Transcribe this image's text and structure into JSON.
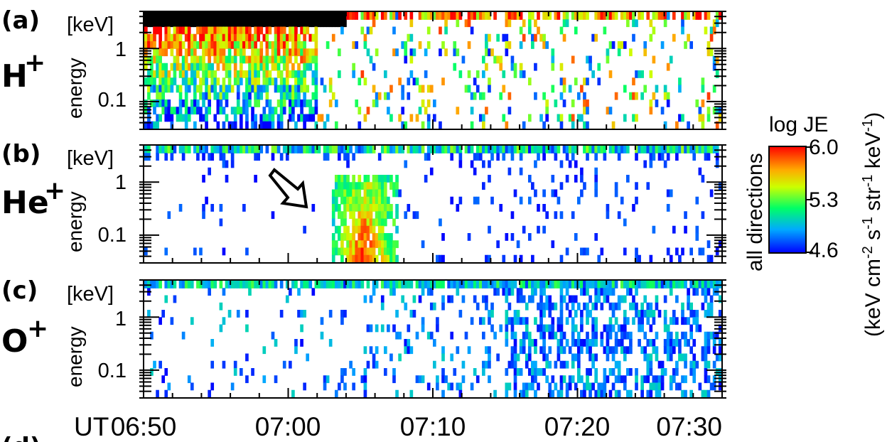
{
  "chart_data": [
    {
      "type": "heatmap",
      "panel_letter": "(a)",
      "species": "H",
      "species_charge": "+",
      "ylabel": "energy",
      "yunit": "[keV]",
      "yscale": "log",
      "ylim": [
        0.03,
        5
      ],
      "yticks": [
        {
          "value": 1,
          "label": "1"
        },
        {
          "value": 0.1,
          "label": "0.1"
        }
      ],
      "features": {
        "saturated_low_energy_until_min": 14,
        "dense_hot_plasma_until_min": 12,
        "sparse_noise_after_min": 12
      }
    },
    {
      "type": "heatmap",
      "panel_letter": "(b)",
      "species": "He",
      "species_charge": "+",
      "ylabel": "energy",
      "yunit": "[keV]",
      "yscale": "log",
      "ylim": [
        0.03,
        5
      ],
      "yticks": [
        {
          "value": 1,
          "label": "1"
        },
        {
          "value": 0.1,
          "label": "0.1"
        }
      ],
      "features": {
        "enhancement_start_min": 13,
        "enhancement_end_min": 17.5,
        "enhancement_energy_range_keV": [
          0.03,
          1.2
        ]
      },
      "annotation": {
        "type": "arrow",
        "points_to": {
          "time_min": 12.8,
          "energy_keV": 0.85
        }
      }
    },
    {
      "type": "heatmap",
      "panel_letter": "(c)",
      "species": "O",
      "species_charge": "+",
      "ylabel": "energy",
      "yunit": "[keV]",
      "yscale": "log",
      "ylim": [
        0.03,
        5
      ],
      "yticks": [
        {
          "value": 1,
          "label": "1"
        },
        {
          "value": 0.1,
          "label": "0.1"
        }
      ],
      "features": {
        "increasing_activity_after_min": 25
      }
    }
  ],
  "xaxis": {
    "label": "UT",
    "range_min": [
      0,
      40
    ],
    "ticks": [
      {
        "value": 0,
        "label": "06:50"
      },
      {
        "value": 10,
        "label": "07:00"
      },
      {
        "value": 20,
        "label": "07:10"
      },
      {
        "value": 30,
        "label": "07:20"
      },
      {
        "value": 40,
        "label": "07:30"
      }
    ]
  },
  "colorbar": {
    "title": "log JE",
    "side_label": "all directions",
    "unit_parts": [
      "(keV cm",
      "-2",
      " s",
      "-1",
      " str",
      "-1",
      " keV",
      "-1",
      ")"
    ],
    "range": [
      4.6,
      6.0
    ],
    "ticks": [
      {
        "value": 6.0,
        "label": "6.0"
      },
      {
        "value": 5.3,
        "label": "5.3"
      },
      {
        "value": 4.6,
        "label": "4.6"
      }
    ],
    "colors": [
      "#0000ff",
      "#00c8ff",
      "#00ff66",
      "#ffff00",
      "#ff8800",
      "#ff0000"
    ]
  },
  "cut_label": "(d)"
}
